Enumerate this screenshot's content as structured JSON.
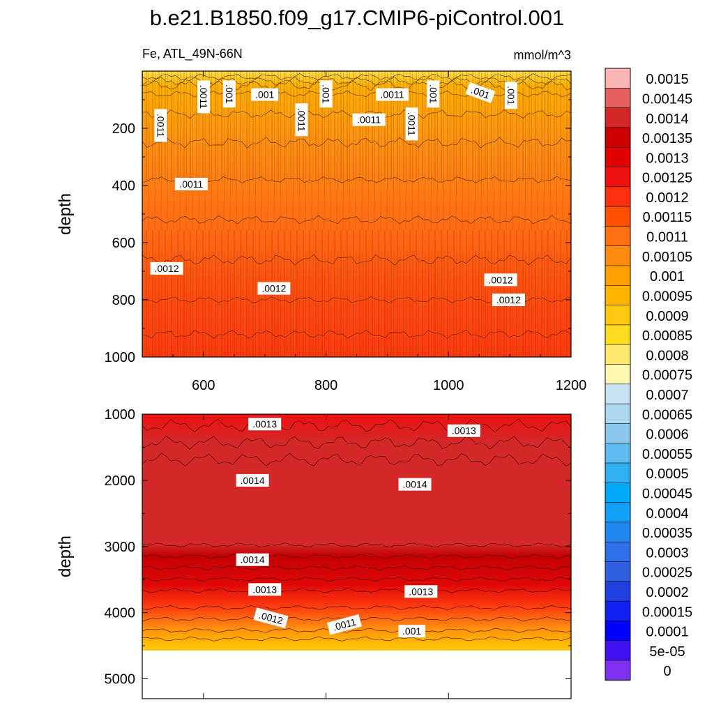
{
  "chart_data": {
    "type": "contour",
    "title": "b.e21.B1850.f09_g17.CMIP6-piControl.001",
    "variable_label": "Fe, ATL_49N-66N",
    "units_label": "mmol/m^3",
    "colorbar": {
      "levels": [
        "0.0015",
        "0.00145",
        "0.0014",
        "0.00135",
        "0.0013",
        "0.00125",
        "0.0012",
        "0.00115",
        "0.0011",
        "0.00105",
        "0.001",
        "0.00095",
        "0.0009",
        "0.00085",
        "0.0008",
        "0.00075",
        "0.0007",
        "0.00065",
        "0.0006",
        "0.00055",
        "0.0005",
        "0.00045",
        "0.0004",
        "0.00035",
        "0.0003",
        "0.00025",
        "0.0002",
        "0.00015",
        "0.0001",
        "5e-05",
        "0"
      ],
      "colors": [
        "#fbb5b5",
        "#e66060",
        "#d42828",
        "#cc0000",
        "#e00000",
        "#f01010",
        "#ff3010",
        "#ff5000",
        "#ff7010",
        "#ff8a10",
        "#ffa000",
        "#ffb400",
        "#ffc810",
        "#ffdc20",
        "#ffe870",
        "#fff8b0",
        "#c8e4f4",
        "#acd8f0",
        "#8cc8ee",
        "#60bcf0",
        "#30b0f0",
        "#00a8f8",
        "#10a0f8",
        "#2088f0",
        "#3070e8",
        "#3060e0",
        "#2040e0",
        "#1020f0",
        "#0000ff",
        "#4010f0",
        "#8030f0"
      ]
    },
    "top_panel": {
      "xlabel": "",
      "ylabel": "depth",
      "xlim": [
        500,
        1200
      ],
      "ylim": [
        1000,
        0
      ],
      "xticks": [
        600,
        800,
        1000,
        1200
      ],
      "yticks": [
        200,
        400,
        600,
        800,
        1000
      ],
      "contour_labels": [
        {
          "text": ".0011",
          "x": 600,
          "y": 90,
          "rot": 90
        },
        {
          "text": ".001",
          "x": 642,
          "y": 80,
          "rot": 90
        },
        {
          "text": ".001",
          "x": 700,
          "y": 82,
          "rot": 0
        },
        {
          "text": ".001",
          "x": 800,
          "y": 80,
          "rot": 90
        },
        {
          "text": ".0011",
          "x": 908,
          "y": 82,
          "rot": 0
        },
        {
          "text": ".001",
          "x": 975,
          "y": 80,
          "rot": 90
        },
        {
          "text": ".001",
          "x": 1052,
          "y": 75,
          "rot": 20
        },
        {
          "text": ".001",
          "x": 1102,
          "y": 85,
          "rot": 90
        },
        {
          "text": ".0011",
          "x": 530,
          "y": 190,
          "rot": 90
        },
        {
          "text": ".0011",
          "x": 870,
          "y": 170,
          "rot": 0
        },
        {
          "text": ".0011",
          "x": 760,
          "y": 170,
          "rot": 90
        },
        {
          "text": ".0011",
          "x": 940,
          "y": 185,
          "rot": 90
        },
        {
          "text": ".0011",
          "x": 580,
          "y": 395,
          "rot": 0
        },
        {
          "text": ".0012",
          "x": 540,
          "y": 690,
          "rot": 0
        },
        {
          "text": ".0012",
          "x": 715,
          "y": 760,
          "rot": 0
        },
        {
          "text": ".0012",
          "x": 1085,
          "y": 730,
          "rot": 0
        },
        {
          "text": ".0012",
          "x": 1098,
          "y": 800,
          "rot": 0
        }
      ]
    },
    "bottom_panel": {
      "xlabel": "",
      "ylabel": "depth",
      "xlim": [
        500,
        1200
      ],
      "ylim": [
        5300,
        1000
      ],
      "yticks": [
        1000,
        2000,
        3000,
        4000,
        5000
      ],
      "contour_labels": [
        {
          "text": ".0013",
          "x": 700,
          "y": 1150,
          "rot": 0
        },
        {
          "text": ".0013",
          "x": 1025,
          "y": 1250,
          "rot": 0
        },
        {
          "text": ".0014",
          "x": 680,
          "y": 2000,
          "rot": 0
        },
        {
          "text": ".0014",
          "x": 945,
          "y": 2060,
          "rot": 0
        },
        {
          "text": ".0014",
          "x": 680,
          "y": 3200,
          "rot": 0
        },
        {
          "text": ".0013",
          "x": 700,
          "y": 3650,
          "rot": 0
        },
        {
          "text": ".0013",
          "x": 955,
          "y": 3680,
          "rot": 0
        },
        {
          "text": ".0012",
          "x": 710,
          "y": 4080,
          "rot": 15
        },
        {
          "text": ".0011",
          "x": 830,
          "y": 4180,
          "rot": -15
        },
        {
          "text": ".001",
          "x": 940,
          "y": 4280,
          "rot": 0
        }
      ]
    }
  }
}
